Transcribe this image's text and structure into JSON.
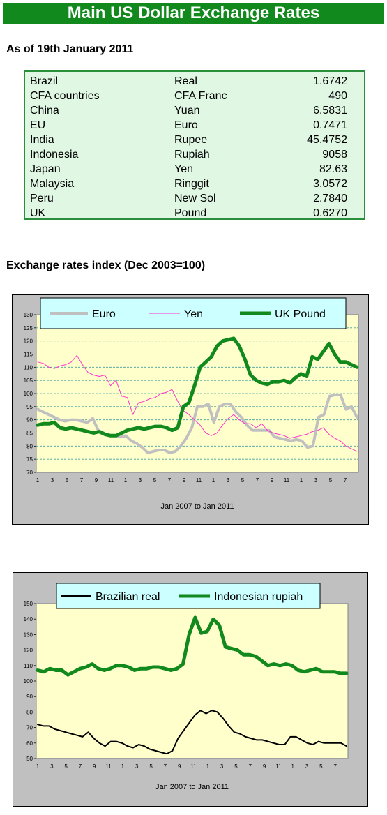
{
  "header": {
    "title": "Main US Dollar Exchange Rates"
  },
  "as_of": "As of 19th January 2011",
  "rates": [
    {
      "country": "Brazil",
      "currency": "Real",
      "value": "1.6742"
    },
    {
      "country": "CFA countries",
      "currency": "CFA Franc",
      "value": "490"
    },
    {
      "country": "China",
      "currency": "Yuan",
      "value": "6.5831"
    },
    {
      "country": "EU",
      "currency": "Euro",
      "value": "0.7471"
    },
    {
      "country": "India",
      "currency": "Rupee",
      "value": "45.4752"
    },
    {
      "country": "Indonesia",
      "currency": "Rupiah",
      "value": "9058"
    },
    {
      "country": "Japan",
      "currency": "Yen",
      "value": "82.63"
    },
    {
      "country": "Malaysia",
      "currency": "Ringgit",
      "value": "3.0572"
    },
    {
      "country": "Peru",
      "currency": "New Sol",
      "value": "2.7840"
    },
    {
      "country": "UK",
      "currency": "Pound",
      "value": "0.6270"
    }
  ],
  "section_title": "Exchange rates index (Dec 2003=100)",
  "chart_data": [
    {
      "type": "line",
      "xlabel": "Jan 2007 to Jan 2011",
      "ylim": [
        70,
        130
      ],
      "yticks": [
        70,
        75,
        80,
        85,
        90,
        95,
        100,
        105,
        110,
        115,
        120,
        125,
        130
      ],
      "xtick_labels": [
        "1",
        "3",
        "5",
        "7",
        "9",
        "11",
        "1",
        "3",
        "5",
        "7",
        "9",
        "11",
        "1",
        "3",
        "5",
        "7",
        "9",
        "11",
        "1",
        "3",
        "5",
        "7"
      ],
      "legend_position": "top",
      "grid": true,
      "series": [
        {
          "name": "Euro",
          "color": "#c0c0c0",
          "width": 4,
          "values": [
            94,
            93,
            92,
            91,
            90,
            89.5,
            90,
            90,
            89.5,
            89,
            90.5,
            86,
            85,
            84,
            84,
            83.5,
            84,
            82,
            81,
            79.5,
            77.5,
            78,
            78.5,
            78.5,
            77.5,
            78,
            80,
            83,
            87,
            95,
            95,
            96,
            89,
            95,
            96,
            96,
            93,
            91,
            88,
            86,
            86,
            86,
            86,
            83.5,
            83,
            82.5,
            82,
            82.5,
            82,
            79.5,
            80,
            91,
            92,
            99,
            99.5,
            99.5,
            94,
            95,
            91
          ]
        },
        {
          "name": "Yen",
          "color": "#ff33cc",
          "width": 1,
          "values": [
            112,
            111.5,
            110,
            109.5,
            110.5,
            111,
            112,
            114.5,
            111,
            108,
            107,
            106.5,
            107,
            103,
            105,
            99,
            98.5,
            92,
            96.5,
            97,
            98,
            98.5,
            100,
            100.5,
            101.5,
            97,
            93.5,
            92,
            90,
            88,
            85,
            84,
            85,
            88,
            90.5,
            92,
            90,
            88.5,
            88.5,
            87,
            88.5,
            86,
            85,
            84.5,
            84,
            83,
            83.5,
            84,
            84.5,
            85.5,
            86,
            87,
            84.5,
            83,
            82,
            80,
            79,
            78
          ]
        },
        {
          "name": "UK Pound",
          "color": "#11891d",
          "width": 5,
          "values": [
            88,
            88.5,
            88.5,
            89,
            87,
            86.5,
            87,
            86.5,
            86,
            85.5,
            85,
            85.5,
            84.5,
            84,
            84,
            85,
            86,
            86.5,
            87,
            86.5,
            87,
            87.5,
            87.5,
            87,
            86,
            87,
            95,
            96.5,
            103,
            110,
            112,
            114,
            118,
            120,
            120.5,
            121,
            118,
            113,
            107,
            105,
            104,
            103.5,
            104.5,
            104.5,
            105,
            104,
            106,
            107.5,
            106.5,
            114,
            113,
            116,
            119,
            115,
            112,
            112,
            111,
            110
          ]
        }
      ]
    },
    {
      "type": "line",
      "xlabel": "Jan 2007 to Jan 2011",
      "ylim": [
        50,
        150
      ],
      "yticks": [
        50,
        60,
        70,
        80,
        90,
        100,
        110,
        120,
        130,
        140,
        150
      ],
      "xtick_labels": [
        "1",
        "3",
        "5",
        "7",
        "9",
        "11",
        "1",
        "3",
        "5",
        "7",
        "9",
        "11",
        "1",
        "3",
        "5",
        "7",
        "9",
        "11",
        "1",
        "3",
        "5",
        "7"
      ],
      "legend_position": "top",
      "grid": false,
      "series": [
        {
          "name": "Brazilian real",
          "color": "#000000",
          "width": 2,
          "values": [
            72,
            71,
            71,
            69,
            68,
            67,
            66,
            65,
            64,
            67,
            63,
            60,
            58,
            61,
            61,
            60,
            58,
            57,
            59,
            58,
            56,
            55,
            54,
            53,
            55,
            63,
            68,
            73,
            78,
            81,
            79,
            81,
            80,
            76,
            71,
            67,
            66,
            64,
            63,
            62,
            62,
            61,
            60,
            59,
            59,
            64,
            64,
            62,
            60,
            59,
            61,
            60,
            60,
            60,
            60,
            58
          ]
        },
        {
          "name": "Indonesian rupiah",
          "color": "#11891d",
          "width": 5,
          "values": [
            107,
            106,
            108,
            107,
            107,
            104,
            106,
            108,
            109,
            111,
            108,
            107,
            108,
            110,
            110,
            109,
            107,
            108,
            108,
            109,
            109,
            108,
            107,
            108,
            111,
            130,
            141,
            131,
            132,
            140,
            136,
            122,
            121,
            120,
            117,
            117,
            116,
            113,
            110,
            111,
            110,
            111,
            110,
            107,
            106,
            107,
            108,
            106,
            106,
            106,
            105,
            105
          ]
        }
      ]
    }
  ]
}
